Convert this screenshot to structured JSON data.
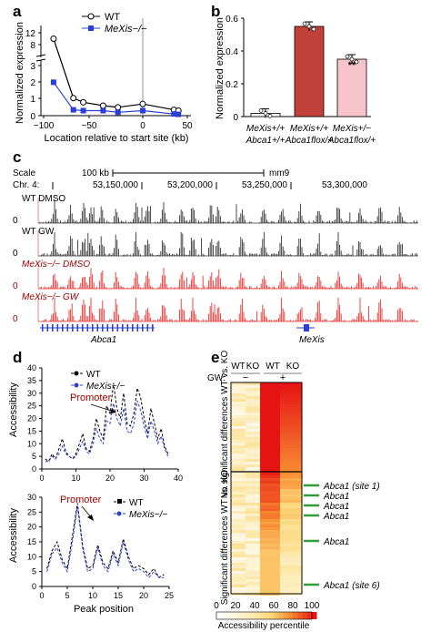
{
  "panels": {
    "a": {
      "letter": "a",
      "ylabel": "Normalized expression",
      "xlabel": "Location relative to start site (kb)",
      "legend": [
        "WT",
        "MeXis−/−"
      ],
      "yticks_top": [
        "12",
        "8"
      ],
      "yticks_bottom": [
        "3",
        "2",
        "1",
        "0"
      ],
      "xticks": [
        "−100",
        "−50",
        "0",
        "50"
      ]
    },
    "b": {
      "letter": "b",
      "ylabel": "Normalized expression",
      "yticks": [
        "0",
        "0.2",
        "0.4",
        "0.6"
      ],
      "significance": "**",
      "categories": [
        {
          "l1": "MeXis+/+",
          "l2": "Abca1+/+"
        },
        {
          "l1": "MeXis+/+",
          "l2": "Abca1flox/+"
        },
        {
          "l1": "MeXis+/−",
          "l2": "Abca1flox/+"
        }
      ]
    },
    "c": {
      "letter": "c",
      "scale_label": "Scale",
      "chr_label": "Chr. 4:",
      "scale_bar": "100 kb",
      "assembly": "mm9",
      "coords": [
        "53,150,000",
        "53,200,000",
        "53,250,000",
        "53,300,000"
      ],
      "tracks": [
        {
          "label": "WT DMSO",
          "color": "#333333"
        },
        {
          "label": "WT GW",
          "color": "#333333"
        },
        {
          "label": "MeXis−/− DMSO",
          "color": "#e8312f"
        },
        {
          "label": "MeXis−/− GW",
          "color": "#e8312f"
        }
      ],
      "zero": "0",
      "genes": [
        "Abca1",
        "MeXis"
      ]
    },
    "d": {
      "letter": "d",
      "top": {
        "ylabel": "Accessibility",
        "legend": [
          "WT",
          "MeXis−/−"
        ],
        "annotation": "Promoter",
        "yticks": [
          "0",
          "5",
          "10",
          "15",
          "20",
          "25",
          "30",
          "35",
          "40"
        ],
        "xticks": [
          "0",
          "10",
          "20",
          "30",
          "40"
        ]
      },
      "bottom": {
        "ylabel": "Accessibility",
        "legend": [
          "WT",
          "MeXis−/−"
        ],
        "annotation": "Promoter",
        "yticks": [
          "0",
          "5",
          "10",
          "15",
          "20",
          "25",
          "30"
        ],
        "xticks": [
          "0",
          "5",
          "10",
          "15",
          "20",
          "25"
        ],
        "xlabel": "Peak position"
      }
    },
    "e": {
      "letter": "e",
      "col_labels": [
        "WT",
        "KO",
        "WT",
        "KO"
      ],
      "gw_label": "GW:",
      "gw_minus": "−",
      "gw_plus": "+",
      "row_group_top": "No significant differences WT vs. KO",
      "row_group_bottom": "Significant differences WT vs. KO",
      "side_labels": [
        "Abca1 (site 1)",
        "Abca1",
        "Abca1",
        "Abca1",
        "Abca1",
        "Abca1 (site 6)"
      ],
      "colorbar_ticks": [
        "0",
        "20",
        "40",
        "60",
        "80",
        "100"
      ],
      "colorbar_label": "Accessibility percentile"
    }
  },
  "chart_data": [
    {
      "type": "line",
      "panel": "a",
      "xlabel": "Location relative to start site (kb)",
      "ylabel": "Normalized expression",
      "xlim": [
        -100,
        50
      ],
      "series": [
        {
          "name": "WT",
          "x": [
            -90,
            -70,
            -60,
            -40,
            -25,
            0,
            35,
            40
          ],
          "y": [
            10.0,
            1.05,
            0.8,
            0.6,
            0.5,
            0.7,
            0.35,
            0.3
          ]
        },
        {
          "name": "MeXis−/−",
          "x": [
            -90,
            -70,
            -60,
            -40,
            -25,
            0,
            35,
            40
          ],
          "y": [
            2.0,
            0.35,
            0.3,
            0.3,
            0.2,
            0.3,
            0.1,
            0.08
          ]
        }
      ]
    },
    {
      "type": "bar",
      "panel": "b",
      "ylabel": "Normalized expression",
      "ylim": [
        0,
        0.6
      ],
      "categories": [
        "MeXis+/+ Abca1+/+",
        "MeXis+/+ Abca1flox/+",
        "MeXis+/− Abca1flox/+"
      ],
      "values": [
        0.02,
        0.55,
        0.35
      ],
      "colors": [
        "#ffffff",
        "#c0403a",
        "#f7c4cc"
      ]
    },
    {
      "type": "line",
      "panel": "d-top",
      "ylabel": "Accessibility",
      "xlim": [
        0,
        40
      ],
      "ylim": [
        0,
        40
      ],
      "series": [
        {
          "name": "WT",
          "x": [
            1,
            2,
            3,
            4,
            5,
            6,
            7,
            8,
            9,
            10,
            11,
            12,
            13,
            14,
            15,
            16,
            17,
            18,
            19,
            20,
            21,
            22,
            23,
            24,
            25,
            26,
            27,
            28,
            29,
            30,
            31,
            32,
            33,
            34,
            35,
            36,
            37
          ],
          "y": [
            4,
            3,
            6,
            4,
            8,
            12,
            7,
            5,
            4,
            6,
            10,
            14,
            8,
            7,
            12,
            20,
            15,
            12,
            25,
            22,
            34,
            24,
            20,
            30,
            18,
            17,
            22,
            32,
            28,
            20,
            14,
            24,
            18,
            12,
            16,
            9,
            6
          ]
        },
        {
          "name": "MeXis−/−",
          "x": [
            1,
            2,
            3,
            4,
            5,
            6,
            7,
            8,
            9,
            10,
            11,
            12,
            13,
            14,
            15,
            16,
            17,
            18,
            19,
            20,
            21,
            22,
            23,
            24,
            25,
            26,
            27,
            28,
            29,
            30,
            31,
            32,
            33,
            34,
            35,
            36,
            37
          ],
          "y": [
            3,
            3,
            5,
            4,
            6,
            9,
            6,
            5,
            4,
            5,
            8,
            11,
            7,
            6,
            10,
            16,
            12,
            10,
            19,
            18,
            26,
            20,
            17,
            24,
            15,
            14,
            18,
            27,
            23,
            17,
            12,
            19,
            15,
            10,
            13,
            8,
            5
          ]
        }
      ]
    },
    {
      "type": "line",
      "panel": "d-bottom",
      "xlabel": "Peak position",
      "ylabel": "Accessibility",
      "xlim": [
        0,
        25
      ],
      "ylim": [
        0,
        30
      ],
      "series": [
        {
          "name": "WT",
          "x": [
            1,
            2,
            3,
            4,
            5,
            6,
            7,
            8,
            9,
            10,
            11,
            12,
            13,
            14,
            15,
            16,
            17,
            18,
            19,
            20,
            21,
            22,
            23,
            24
          ],
          "y": [
            6,
            12,
            15,
            9,
            6,
            17,
            28,
            14,
            6,
            7,
            14,
            8,
            6,
            12,
            8,
            16,
            10,
            6,
            7,
            6,
            4,
            6,
            3,
            4
          ]
        },
        {
          "name": "MeXis−/−",
          "x": [
            1,
            2,
            3,
            4,
            5,
            6,
            7,
            8,
            9,
            10,
            11,
            12,
            13,
            14,
            15,
            16,
            17,
            18,
            19,
            20,
            21,
            22,
            23,
            24
          ],
          "y": [
            5,
            11,
            13,
            8,
            5,
            15,
            27,
            13,
            5,
            6,
            13,
            7,
            5,
            11,
            7,
            15,
            9,
            5,
            6,
            5,
            3,
            5,
            3,
            3
          ]
        }
      ]
    }
  ]
}
